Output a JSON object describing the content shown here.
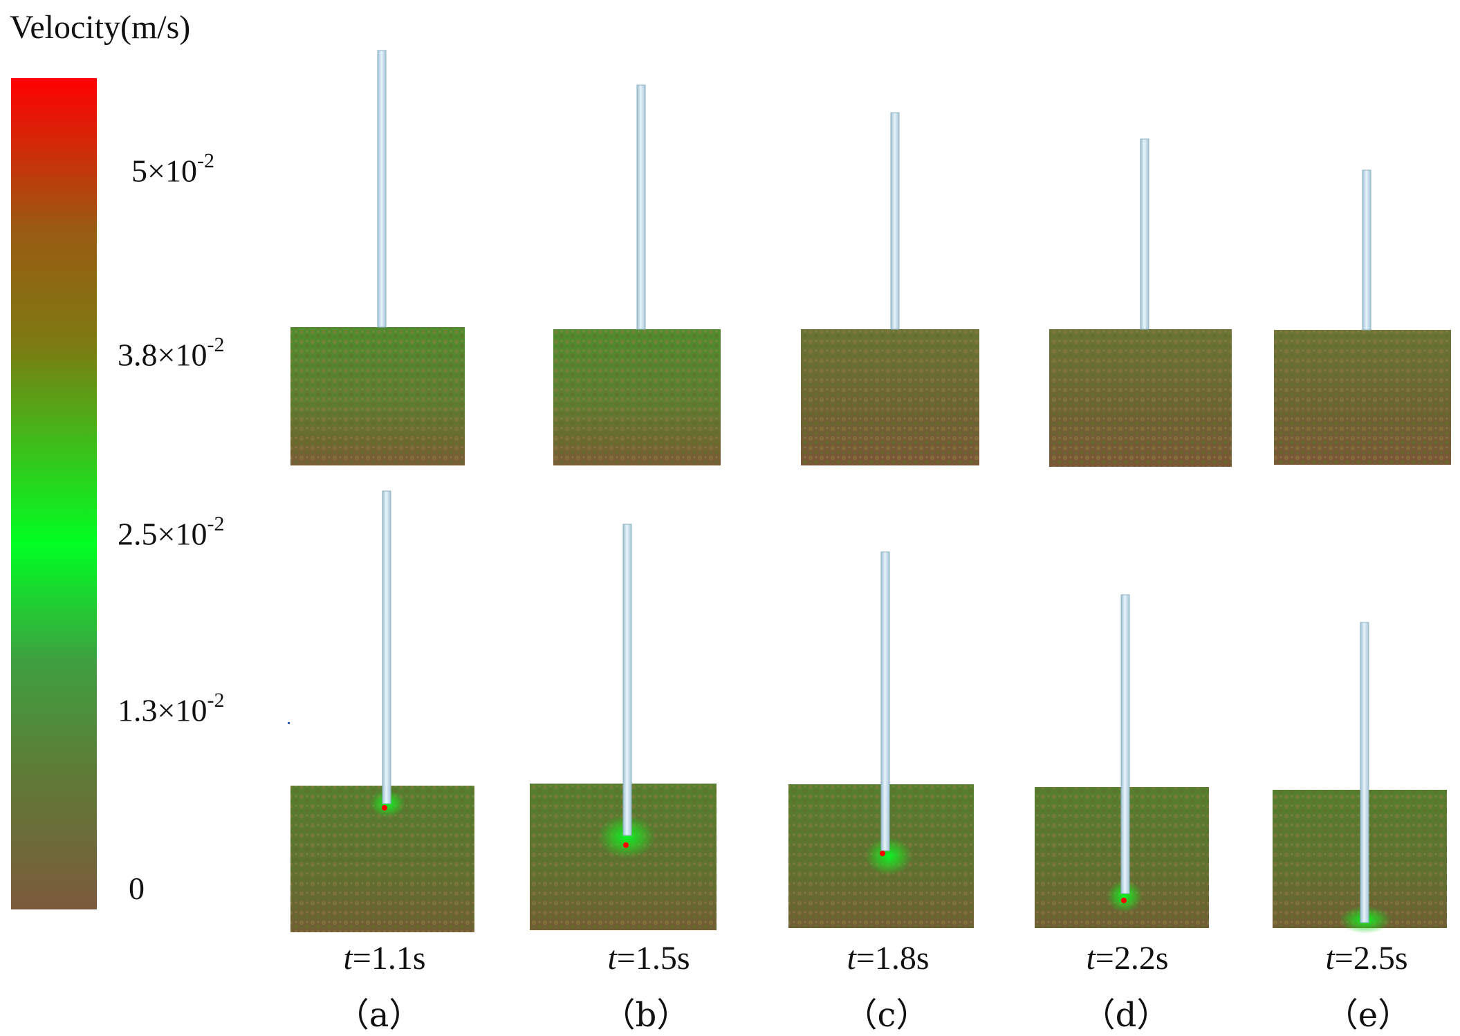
{
  "legend": {
    "title": "Velocity(m/s)",
    "gradient_colors": [
      "#ff0000",
      "#9a5a12",
      "#7d7a12",
      "#00ff22",
      "#3ea040",
      "#5f7a36",
      "#7c5a3c"
    ],
    "ticks": [
      {
        "mantissa": "5×10",
        "exp": "-2"
      },
      {
        "mantissa": "3.8×10",
        "exp": "-2"
      },
      {
        "mantissa": "2.5×10",
        "exp": "-2"
      },
      {
        "mantissa": "1.3×10",
        "exp": "-2"
      },
      {
        "mantissa": "0",
        "exp": ""
      }
    ]
  },
  "colors": {
    "soil_base": "#6b6a2c",
    "soil_green": "#4e8a2c",
    "soil_brown": "#7a5b36",
    "particle_fast": "#00ff22",
    "particle_max": "#ff0000",
    "rod": "#cfe6f2",
    "rod_edge": "#8fb0c2"
  },
  "panels": [
    {
      "label": "（a）",
      "t_var": "t",
      "t_value": "=1.1s"
    },
    {
      "label": "（b）",
      "t_var": "t",
      "t_value": "=1.5s"
    },
    {
      "label": "（c）",
      "t_var": "t",
      "t_value": "=1.8s"
    },
    {
      "label": "（d）",
      "t_var": "t",
      "t_value": "=2.2s"
    },
    {
      "label": "（e）",
      "t_var": "t",
      "t_value": "=2.5s"
    }
  ]
}
